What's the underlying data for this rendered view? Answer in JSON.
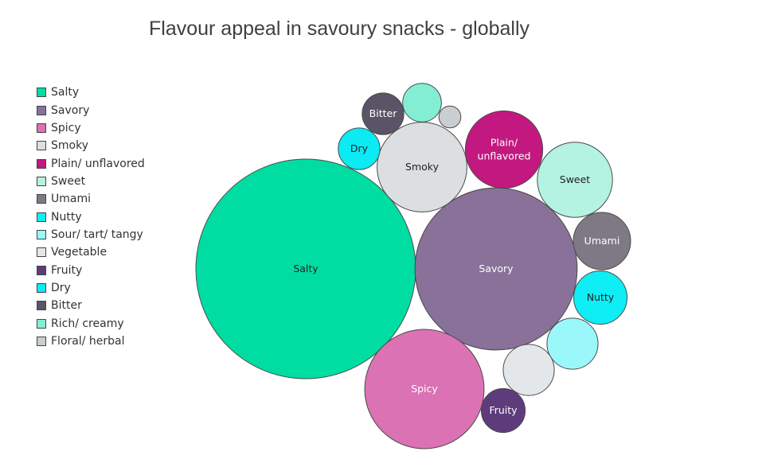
{
  "chart_data": {
    "type": "bubble",
    "title": "Flavour appeal in savoury snacks - globally",
    "legend_position": "left",
    "series": [
      {
        "name": "Salty",
        "color": "#00DDA2",
        "value": 100,
        "label": "Salty",
        "label_color": "#222222"
      },
      {
        "name": "Savory",
        "color": "#8A7199",
        "value": 54.5,
        "label": "Savory",
        "label_color": "#ffffff"
      },
      {
        "name": "Spicy",
        "color": "#DA72B3",
        "value": 29.5,
        "label": "Spicy",
        "label_color": "#ffffff"
      },
      {
        "name": "Smoky",
        "color": "#DCDFE2",
        "value": 16.7,
        "label": "Smoky",
        "label_color": "#222222"
      },
      {
        "name": "Plain/ unflavored",
        "color": "#C3187F",
        "value": 12.4,
        "label": "Plain/\nunflavored",
        "label_color": "#ffffff"
      },
      {
        "name": "Sweet",
        "color": "#B4F2E2",
        "value": 11.7,
        "label": "Sweet",
        "label_color": "#222222"
      },
      {
        "name": "Umami",
        "color": "#7F7985",
        "value": 6.8,
        "label": "Umami",
        "label_color": "#ffffff"
      },
      {
        "name": "Nutty",
        "color": "#0FEDF5",
        "value": 5.9,
        "label": "Nutty",
        "label_color": "#222222"
      },
      {
        "name": "Sour/ tart/ tangy",
        "color": "#9BF8FA",
        "value": 5.4,
        "label": "",
        "label_color": "#222222"
      },
      {
        "name": "Vegetable",
        "color": "#E4E7EA",
        "value": 5.4,
        "label": "",
        "label_color": "#222222"
      },
      {
        "name": "Fruity",
        "color": "#5E3C7C",
        "value": 4.0,
        "label": "Fruity",
        "label_color": "#ffffff"
      },
      {
        "name": "Dry",
        "color": "#0AEBF4",
        "value": 3.6,
        "label": "Dry",
        "label_color": "#222222"
      },
      {
        "name": "Bitter",
        "color": "#5B5367",
        "value": 3.6,
        "label": "Bitter",
        "label_color": "#ffffff"
      },
      {
        "name": "Rich/ creamy",
        "color": "#83EED4",
        "value": 3.1,
        "label": "",
        "label_color": "#222222"
      },
      {
        "name": "Floral/ herbal",
        "color": "#C9CED2",
        "value": 1.0,
        "label": "",
        "label_color": "#222222"
      }
    ]
  }
}
